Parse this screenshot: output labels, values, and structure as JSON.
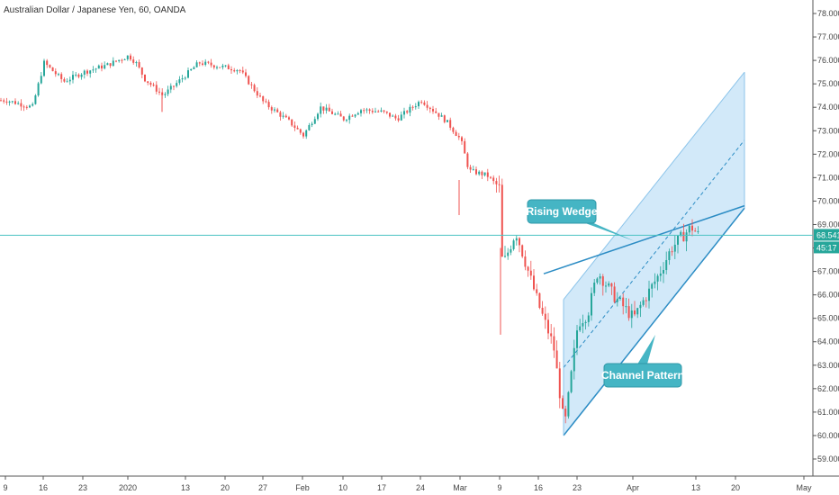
{
  "title": "Australian Dollar / Japanese Yen, 60, OANDA",
  "colors": {
    "up": "#26a69a",
    "down": "#ef5350",
    "channel_line": "#2b8cc4",
    "channel_fill": "#bfe0f7",
    "last_price_line": "#4cc3c3",
    "tag": "#26a69a",
    "callout": "#45b5c4"
  },
  "annotations": {
    "rising_wedge": "Rising Wedge",
    "channel_pattern": "Channel Pattern"
  },
  "price_tag": {
    "price": "68.541",
    "countdown": "45:17"
  },
  "chart_data": {
    "type": "candlestick",
    "title": "Australian Dollar / Japanese Yen, 60, OANDA",
    "instrument": "AUD/JPY",
    "interval": "60",
    "source": "OANDA",
    "ylim": [
      58.4,
      78.3
    ],
    "y_ticks": [
      "59.000",
      "60.000",
      "61.000",
      "62.000",
      "63.000",
      "64.000",
      "65.000",
      "66.000",
      "67.000",
      "68.000",
      "69.000",
      "70.000",
      "71.000",
      "72.000",
      "73.000",
      "74.000",
      "75.000",
      "76.000",
      "77.000",
      "78.000"
    ],
    "x_ticks": [
      "9",
      "16",
      "23",
      "2020",
      "13",
      "20",
      "27",
      "Feb",
      "10",
      "17",
      "24",
      "Mar",
      "9",
      "16",
      "23",
      "Apr",
      "13",
      "20",
      "May"
    ],
    "last_price": 68.541,
    "price_path": [
      {
        "date": "9",
        "close": 74.3
      },
      {
        "date": "13",
        "close": 74.0
      },
      {
        "date": "16",
        "close": 75.9
      },
      {
        "date": "20",
        "close": 75.1
      },
      {
        "date": "23",
        "close": 75.5
      },
      {
        "date": "27",
        "close": 75.8
      },
      {
        "date": "2020",
        "close": 76.2
      },
      {
        "date": "2 Jan",
        "close": 75.9
      },
      {
        "date": "6 Jan",
        "close": 75.2
      },
      {
        "date": "9 Jan",
        "close": 74.5
      },
      {
        "date": "13",
        "close": 75.4
      },
      {
        "date": "16 Jan",
        "close": 75.9
      },
      {
        "date": "20",
        "close": 75.7
      },
      {
        "date": "23 Jan",
        "close": 75.6
      },
      {
        "date": "27",
        "close": 74.2
      },
      {
        "date": "30 Jan",
        "close": 73.4
      },
      {
        "date": "Feb",
        "close": 72.8
      },
      {
        "date": "5 Feb",
        "close": 74.0
      },
      {
        "date": "10",
        "close": 73.5
      },
      {
        "date": "13 Feb",
        "close": 73.9
      },
      {
        "date": "17",
        "close": 73.8
      },
      {
        "date": "20 Feb",
        "close": 73.5
      },
      {
        "date": "24",
        "close": 74.3
      },
      {
        "date": "27 Feb",
        "close": 73.4
      },
      {
        "date": "Mar",
        "close": 72.6
      },
      {
        "date": "4 Mar",
        "close": 71.3
      },
      {
        "date": "6 Mar",
        "close": 71.1
      },
      {
        "date": "9",
        "close": 70.5
      },
      {
        "date": "10 Mar",
        "close": 67.2
      },
      {
        "date": "12 Mar",
        "close": 68.7
      },
      {
        "date": "16",
        "close": 65.5
      },
      {
        "date": "19 Mar",
        "close": 63.8
      },
      {
        "date": "20 Mar",
        "close": 60.3
      },
      {
        "date": "23",
        "close": 64.8
      },
      {
        "date": "25 Mar",
        "close": 65.2
      },
      {
        "date": "27 Mar",
        "close": 67.0
      },
      {
        "date": "30 Mar",
        "close": 66.0
      },
      {
        "date": "Apr",
        "close": 65.0
      },
      {
        "date": "3 Apr",
        "close": 65.5
      },
      {
        "date": "7 Apr",
        "close": 66.8
      },
      {
        "date": "9 Apr",
        "close": 68.0
      },
      {
        "date": "13",
        "close": 68.9
      },
      {
        "date": "14 Apr",
        "close": 68.541
      }
    ],
    "drawings": {
      "channel": {
        "lower": [
          {
            "date": "20 Mar",
            "price": 60.0
          },
          {
            "date": "20 Apr",
            "price": 69.7
          }
        ],
        "upper": [
          {
            "date": "20 Mar",
            "price": 65.8
          },
          {
            "date": "20 Apr",
            "price": 75.5
          }
        ],
        "midline": [
          {
            "date": "20 Mar",
            "price": 62.9
          },
          {
            "date": "20 Apr",
            "price": 72.6
          }
        ]
      },
      "wedge_line": [
        {
          "date": "16 Mar",
          "price": 66.9
        },
        {
          "date": "20 Apr",
          "price": 69.8
        }
      ]
    }
  }
}
